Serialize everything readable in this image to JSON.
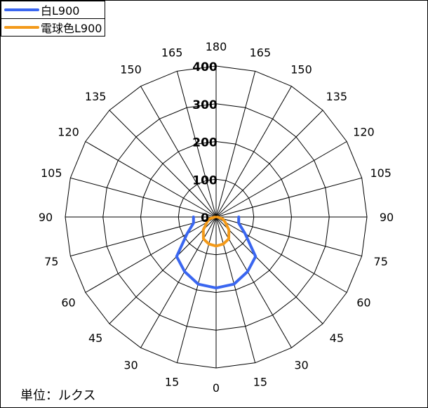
{
  "chart_data": {
    "type": "polar-line",
    "radial_range": [
      0,
      400
    ],
    "radial_ticks": [
      0,
      100,
      200,
      300,
      400
    ],
    "angle_labels": [
      "180",
      "165",
      "150",
      "135",
      "120",
      "105",
      "90",
      "75",
      "60",
      "45",
      "30",
      "15",
      "0",
      "15",
      "30",
      "45",
      "60",
      "75",
      "90",
      "105",
      "120",
      "135",
      "150",
      "165"
    ],
    "unit_label": "単位：ルクス",
    "series": [
      {
        "name": "白L900",
        "color": "#3a66f0",
        "points": [
          {
            "angle": -90,
            "value": 60
          },
          {
            "angle": -75,
            "value": 62
          },
          {
            "angle": -60,
            "value": 89
          },
          {
            "angle": -45,
            "value": 148
          },
          {
            "angle": -30,
            "value": 167
          },
          {
            "angle": -15,
            "value": 184
          },
          {
            "angle": 0,
            "value": 188
          },
          {
            "angle": 15,
            "value": 184
          },
          {
            "angle": 30,
            "value": 167
          },
          {
            "angle": 45,
            "value": 148
          },
          {
            "angle": 60,
            "value": 89
          },
          {
            "angle": 75,
            "value": 62
          },
          {
            "angle": 90,
            "value": 60
          }
        ]
      },
      {
        "name": "電球色L900",
        "color": "#f39a1a",
        "points": [
          {
            "angle": -90,
            "value": 3
          },
          {
            "angle": -75,
            "value": 18
          },
          {
            "angle": -60,
            "value": 28
          },
          {
            "angle": -45,
            "value": 48
          },
          {
            "angle": -30,
            "value": 67
          },
          {
            "angle": -15,
            "value": 74
          },
          {
            "angle": 0,
            "value": 77
          },
          {
            "angle": 15,
            "value": 74
          },
          {
            "angle": 30,
            "value": 67
          },
          {
            "angle": 45,
            "value": 48
          },
          {
            "angle": 60,
            "value": 28
          },
          {
            "angle": 75,
            "value": 18
          },
          {
            "angle": 90,
            "value": 3
          }
        ]
      }
    ]
  }
}
